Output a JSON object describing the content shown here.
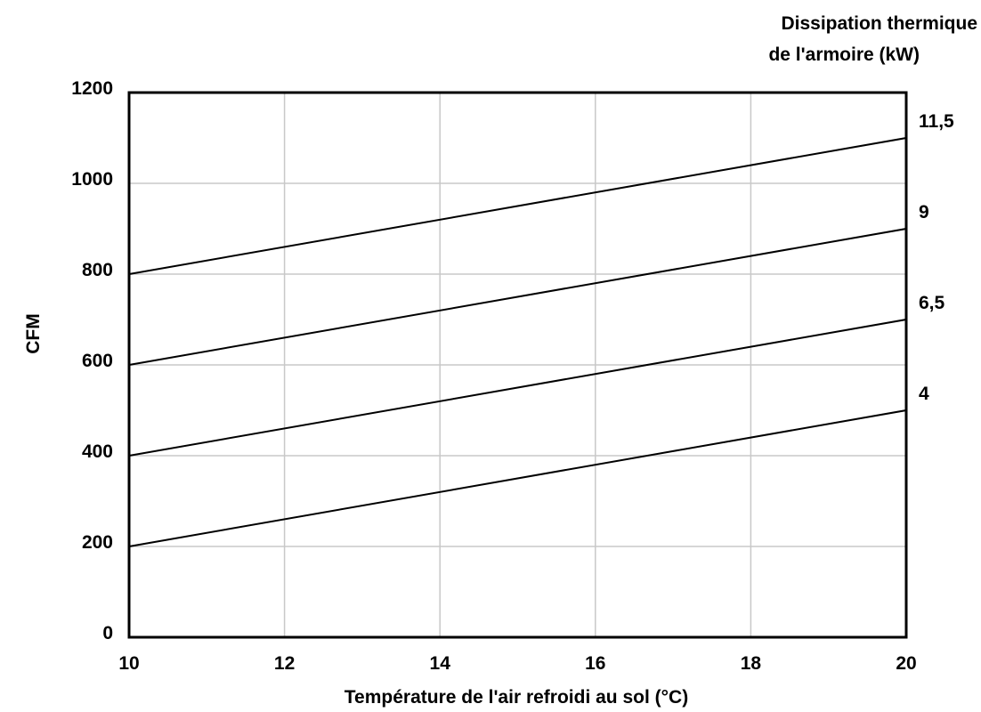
{
  "chart_data": {
    "type": "line",
    "title": "",
    "xlabel": "Température de l'air refroidi au sol (°C)",
    "ylabel": "CFM",
    "xlim": [
      10,
      20
    ],
    "ylim": [
      0,
      1200
    ],
    "x_ticks": [
      "10",
      "12",
      "14",
      "16",
      "18",
      "20"
    ],
    "y_ticks": [
      "0",
      "200",
      "400",
      "600",
      "800",
      "1000",
      "1200"
    ],
    "grid": true,
    "right_axis_title": [
      "Dissipation thermique",
      "de l'armoire (kW)"
    ],
    "series": [
      {
        "name": "4",
        "x": [
          10,
          20
        ],
        "y": [
          200,
          500
        ]
      },
      {
        "name": "6,5",
        "x": [
          10,
          20
        ],
        "y": [
          400,
          700
        ]
      },
      {
        "name": "9",
        "x": [
          10,
          20
        ],
        "y": [
          600,
          900
        ]
      },
      {
        "name": "11,5",
        "x": [
          10,
          20
        ],
        "y": [
          800,
          1100
        ]
      }
    ]
  }
}
